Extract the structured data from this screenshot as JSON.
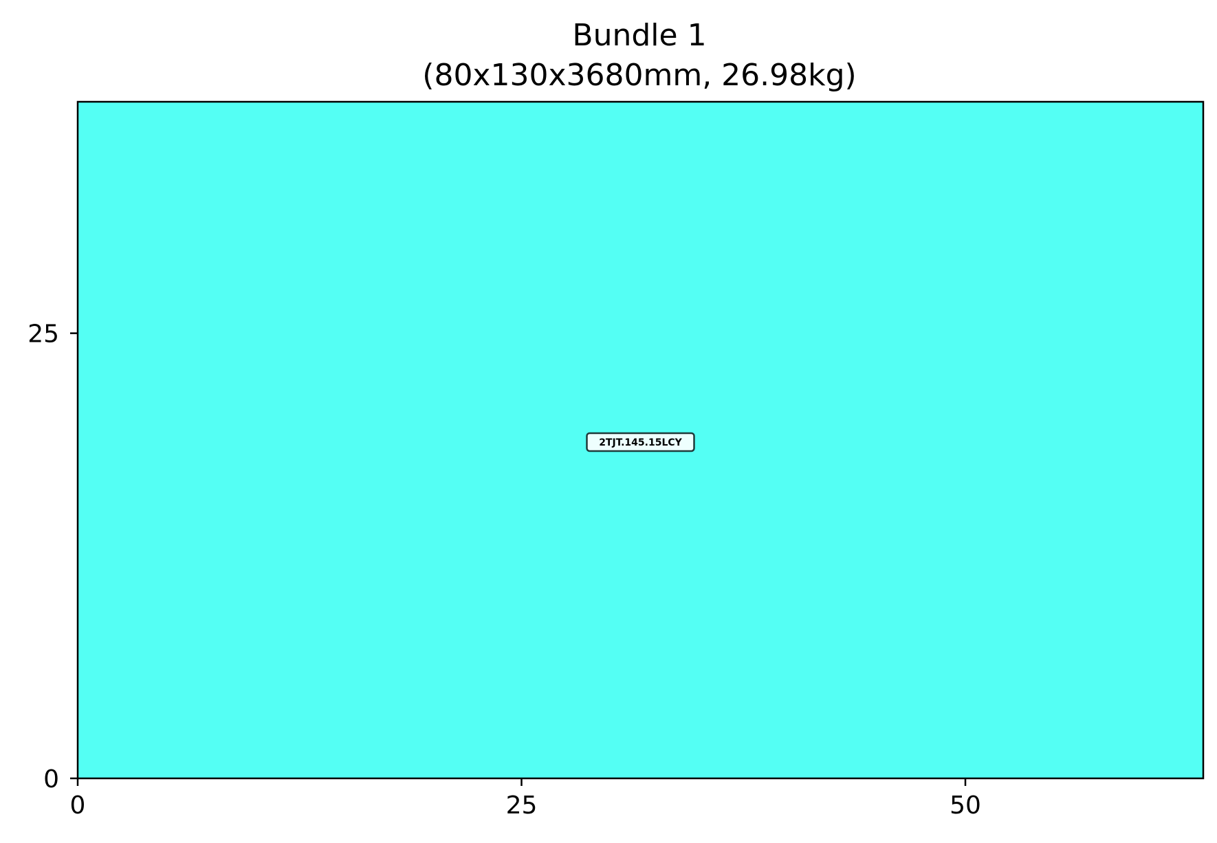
{
  "chart_data": {
    "type": "bar",
    "title": "Bundle 1",
    "subtitle": "(80x130x3680mm, 26.98kg)",
    "xlabel": "",
    "ylabel": "",
    "xlim": [
      0,
      63.4
    ],
    "ylim": [
      0,
      38
    ],
    "x_ticks": [
      0,
      25,
      50
    ],
    "y_ticks": [
      0,
      25
    ],
    "grid": false,
    "pieces": [
      {
        "label": "2TJT.145.15LCY",
        "x": 0,
        "y": 0,
        "width": 63.4,
        "height": 38,
        "color": "#54fff4"
      }
    ]
  }
}
